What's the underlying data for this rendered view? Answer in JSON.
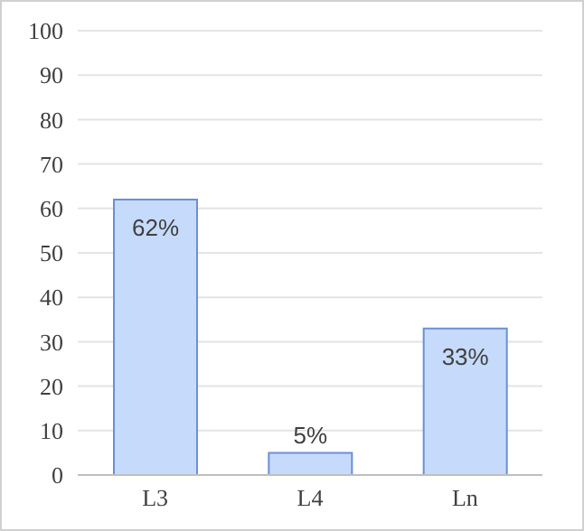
{
  "chart_data": {
    "type": "bar",
    "categories": [
      "L3",
      "L4",
      "Ln"
    ],
    "values": [
      62,
      5,
      33
    ],
    "value_labels": [
      "62%",
      "5%",
      "33%"
    ],
    "color": "#c6dbfb",
    "ylim": [
      0,
      100
    ],
    "yticks": [
      0,
      10,
      20,
      30,
      40,
      50,
      60,
      70,
      80,
      90,
      100
    ],
    "grid": "y"
  }
}
